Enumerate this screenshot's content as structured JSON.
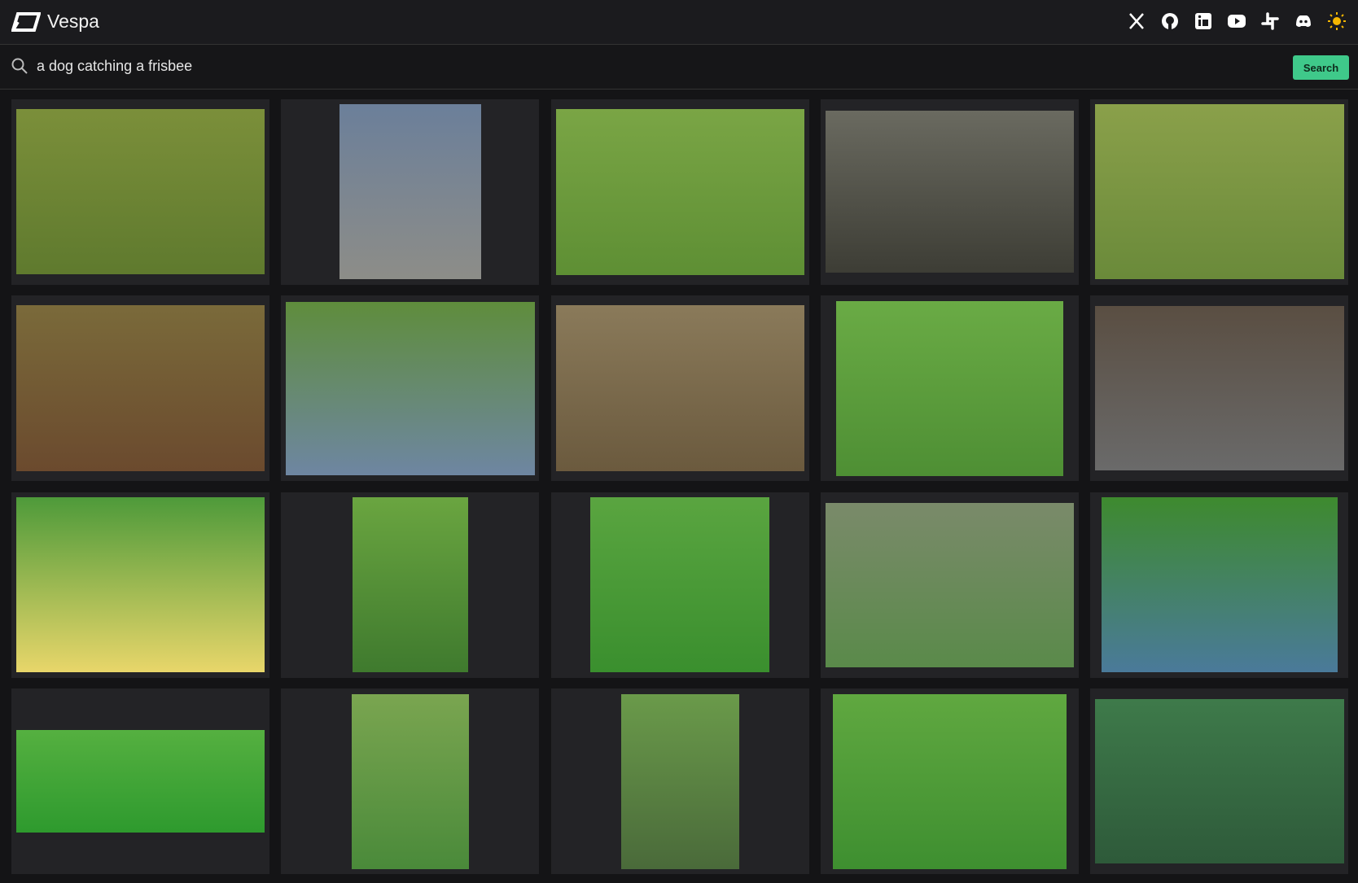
{
  "header": {
    "brand": "Vespa"
  },
  "search": {
    "query": "a dog catching a frisbee",
    "button": "Search"
  }
}
